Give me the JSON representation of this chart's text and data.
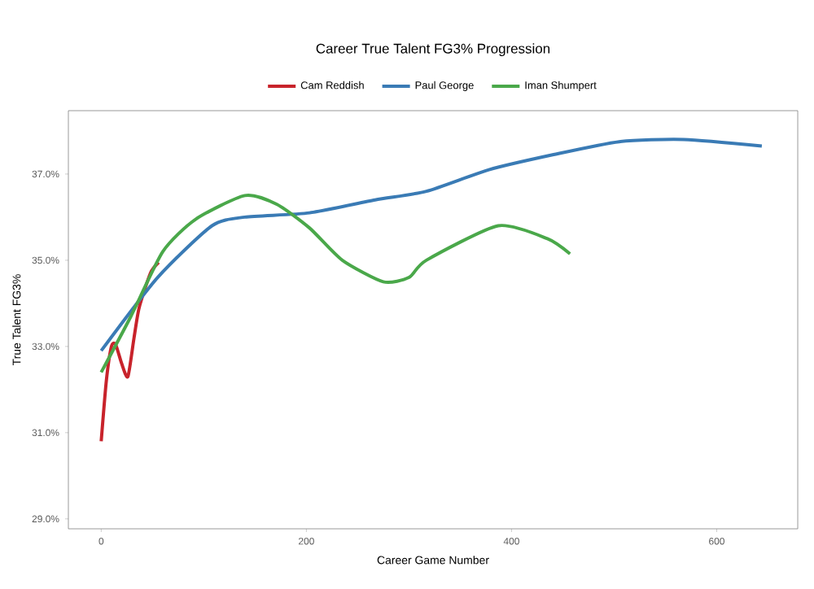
{
  "chart_data": {
    "type": "line",
    "title": "Career True Talent FG3% Progression",
    "xlabel": "Career Game Number",
    "ylabel": "True Talent FG3%",
    "legend": "top",
    "grid": false,
    "marker": "none",
    "line_style": "solid",
    "xlim": [
      -32,
      679
    ],
    "ylim": [
      28.77,
      38.47
    ],
    "xticks": [
      0,
      200,
      400,
      600
    ],
    "yticks": [
      {
        "value": 29,
        "label": "29.0%"
      },
      {
        "value": 31,
        "label": "31.0%"
      },
      {
        "value": 33,
        "label": "33.0%"
      },
      {
        "value": 35,
        "label": "35.0%"
      },
      {
        "value": 37,
        "label": "37.0%"
      }
    ],
    "series": [
      {
        "name": "Cam Reddish",
        "color": "#c8232b",
        "x": [
          0,
          5,
          10,
          14,
          20,
          26,
          32,
          37,
          48,
          56
        ],
        "values": [
          30.8,
          32.2,
          33.0,
          33.05,
          32.6,
          32.3,
          33.2,
          33.9,
          34.7,
          34.95
        ]
      },
      {
        "name": "Paul George",
        "color": "#3a7bb5",
        "x": [
          0,
          55,
          108,
          140,
          203,
          267,
          317,
          378,
          441,
          505,
          568,
          644
        ],
        "values": [
          32.9,
          34.6,
          35.8,
          36.0,
          36.1,
          36.4,
          36.6,
          37.1,
          37.45,
          37.75,
          37.8,
          37.65
        ]
      },
      {
        "name": "Iman Shumpert",
        "color": "#4aa84a",
        "x": [
          0,
          29,
          60,
          92,
          140,
          171,
          203,
          235,
          275,
          300,
          317,
          387,
          435,
          457
        ],
        "values": [
          32.4,
          33.7,
          35.2,
          35.95,
          36.5,
          36.3,
          35.75,
          35.0,
          34.5,
          34.6,
          35.0,
          35.8,
          35.5,
          35.15
        ]
      }
    ]
  }
}
